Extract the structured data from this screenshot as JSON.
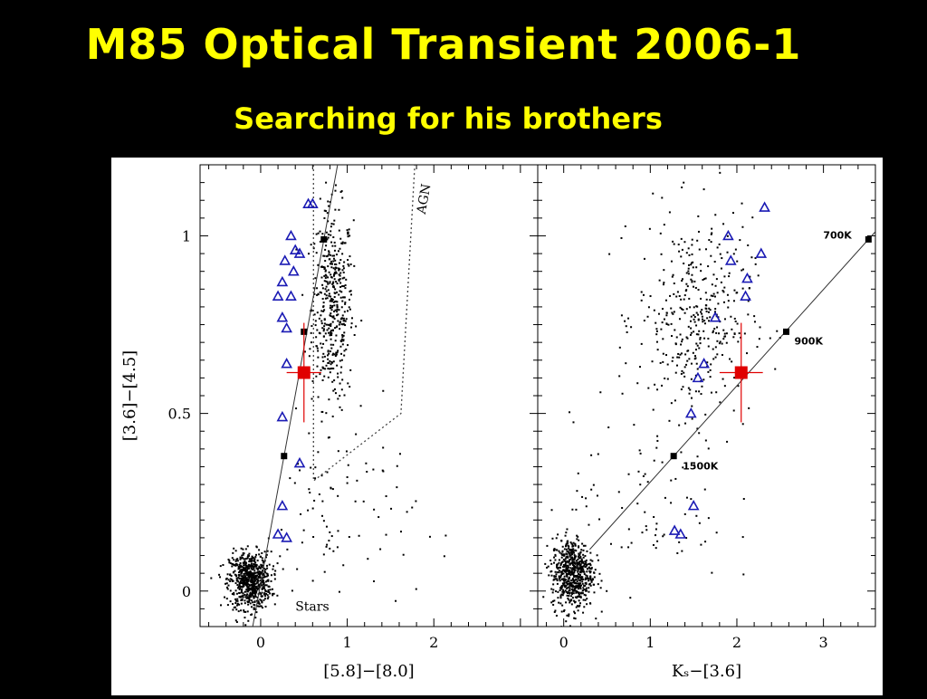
{
  "slide": {
    "title": "M85 Optical Transient 2006-1",
    "subtitle": "Searching for his brothers"
  },
  "chart_data": [
    {
      "type": "scatter",
      "xlabel": "[5.8]−[8.0]",
      "ylabel": "[3.6]−[4.5]",
      "xlim": [
        -0.7,
        3.2
      ],
      "ylim": [
        -0.1,
        1.2
      ],
      "xticks": [
        "0",
        "1",
        "2"
      ],
      "yticks": [
        "0",
        "0.5",
        "1"
      ],
      "annotations": [
        "AGN",
        "Stars"
      ],
      "blackbody_track": [
        [
          0.27,
          0.38
        ],
        [
          0.5,
          0.73
        ],
        [
          0.73,
          0.99
        ]
      ],
      "agn_wedge": [
        [
          0.61,
          1.2
        ],
        [
          0.61,
          0.31
        ],
        [
          1.62,
          0.5
        ],
        [
          1.78,
          1.2
        ]
      ],
      "transient": {
        "x": 0.5,
        "y": 0.615,
        "xerr": 0.2,
        "yerr": 0.14,
        "color": "#e00000"
      },
      "triangles": [
        [
          0.55,
          1.09
        ],
        [
          0.6,
          1.09
        ],
        [
          0.35,
          1.0
        ],
        [
          0.4,
          0.96
        ],
        [
          0.45,
          0.95
        ],
        [
          0.28,
          0.93
        ],
        [
          0.25,
          0.87
        ],
        [
          0.38,
          0.9
        ],
        [
          0.2,
          0.83
        ],
        [
          0.35,
          0.83
        ],
        [
          0.25,
          0.77
        ],
        [
          0.3,
          0.74
        ],
        [
          0.3,
          0.64
        ],
        [
          0.25,
          0.49
        ],
        [
          0.45,
          0.36
        ],
        [
          0.25,
          0.24
        ],
        [
          0.2,
          0.16
        ],
        [
          0.3,
          0.15
        ]
      ],
      "triangle_color": "#1a1ab4",
      "dot_clusters": [
        {
          "cx": 0.83,
          "cy": 0.8,
          "sx": 0.12,
          "sy": 0.14,
          "n": 450
        },
        {
          "cx": -0.12,
          "cy": 0.03,
          "sx": 0.12,
          "sy": 0.04,
          "n": 700
        },
        {
          "cx": 0.9,
          "cy": 0.2,
          "sx": 0.45,
          "sy": 0.14,
          "n": 90
        }
      ]
    },
    {
      "type": "scatter",
      "xlabel": "Kₛ−[3.6]",
      "ylabel": "",
      "xlim": [
        -0.3,
        3.6
      ],
      "ylim": [
        -0.1,
        1.2
      ],
      "xticks": [
        "0",
        "1",
        "2",
        "3"
      ],
      "annotations": [
        "700K",
        "900K",
        "1500K"
      ],
      "blackbody_track": [
        [
          1.27,
          0.38
        ],
        [
          2.57,
          0.73
        ],
        [
          3.52,
          0.99
        ]
      ],
      "transient": {
        "x": 2.05,
        "y": 0.615,
        "xerr": 0.25,
        "yerr": 0.14,
        "color": "#e00000"
      },
      "triangles": [
        [
          2.32,
          1.08
        ],
        [
          1.9,
          1.0
        ],
        [
          1.93,
          0.93
        ],
        [
          2.28,
          0.95
        ],
        [
          2.12,
          0.88
        ],
        [
          2.1,
          0.83
        ],
        [
          1.75,
          0.77
        ],
        [
          1.62,
          0.64
        ],
        [
          1.55,
          0.6
        ],
        [
          1.47,
          0.5
        ],
        [
          1.5,
          0.24
        ],
        [
          1.28,
          0.17
        ],
        [
          1.35,
          0.16
        ]
      ],
      "triangle_color": "#1a1ab4",
      "dot_clusters": [
        {
          "cx": 1.52,
          "cy": 0.77,
          "sx": 0.33,
          "sy": 0.14,
          "n": 400
        },
        {
          "cx": 0.1,
          "cy": 0.05,
          "sx": 0.12,
          "sy": 0.05,
          "n": 650
        },
        {
          "cx": 1.0,
          "cy": 0.25,
          "sx": 0.45,
          "sy": 0.12,
          "n": 80
        }
      ]
    }
  ]
}
